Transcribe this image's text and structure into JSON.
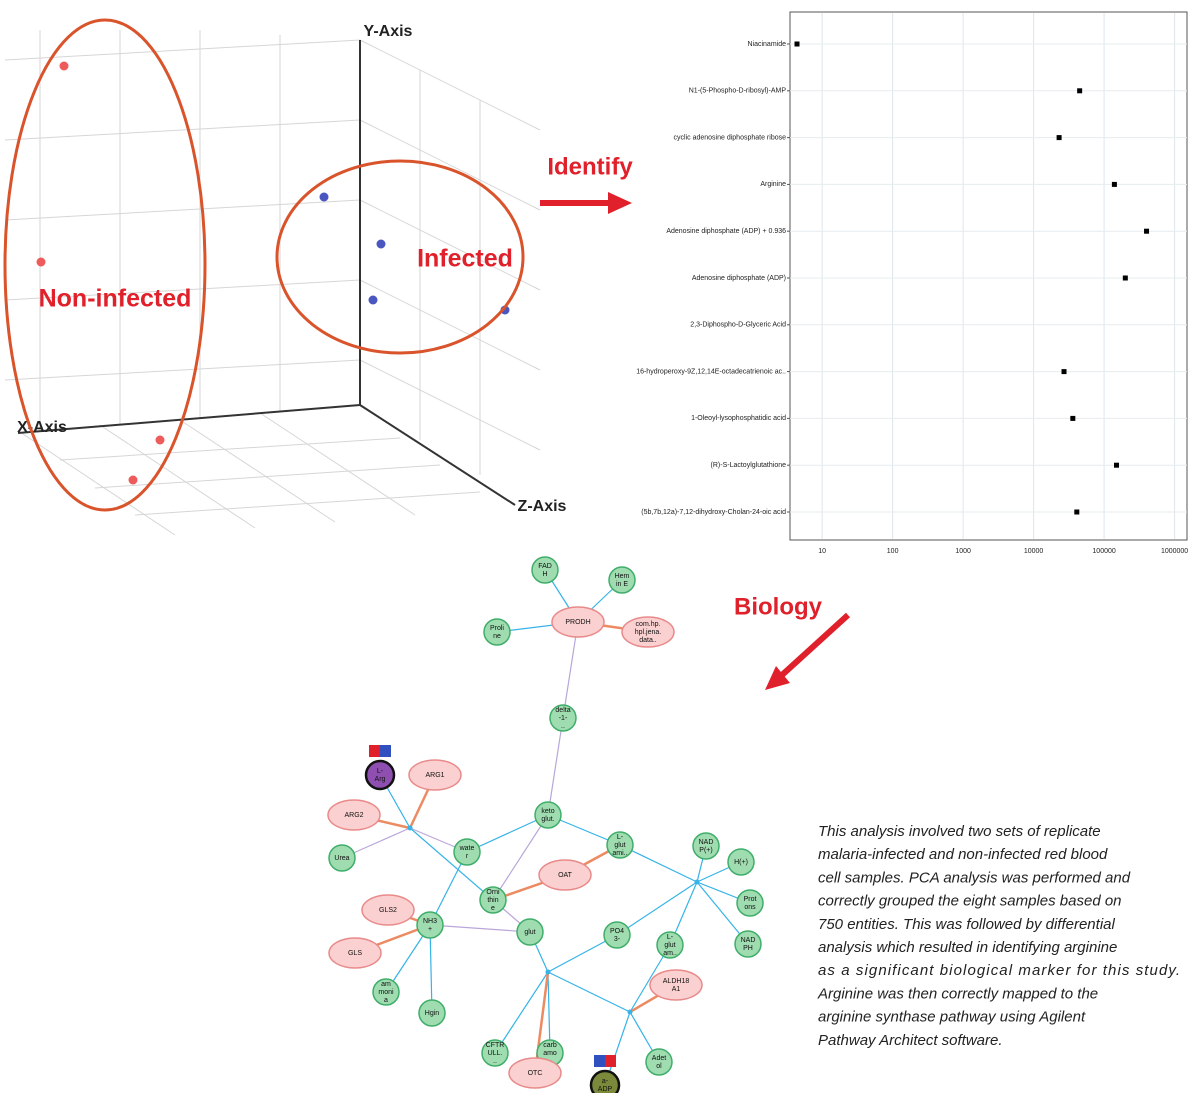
{
  "pca_plot": {
    "x_axis_label": "X-Axis",
    "y_axis_label": "Y-Axis",
    "z_axis_label": "Z-Axis",
    "groups": [
      "Non-infected",
      "Infected"
    ]
  },
  "arrows": {
    "identify": "Identify",
    "biology": "Biology"
  },
  "chart_data": {
    "type": "dot",
    "categories": [
      "Niacinamide",
      "N1-(5-Phospho-D-ribosyl)-AMP",
      "cyclic adenosine diphosphate ribose",
      "Arginine",
      "Adenosine diphosphate (ADP) + 0.936",
      "Adenosine diphosphate (ADP)",
      "2,3-Diphospho-D-Glyceric Acid",
      "16-hydroperoxy-9Z,12,14E-octadecatrienoic ac..",
      "1-Oleoyl-lysophosphatidic acid",
      "(R)-S-Lactoylglutathione",
      "(5b,7b,12a)-7,12-dihydroxy-Cholan-24-oic acid"
    ],
    "values": [
      4.4,
      45000,
      23000,
      140000,
      400000,
      200000,
      null,
      27000,
      36000,
      150000,
      41000
    ],
    "color": "#000000",
    "xlim": [
      3.5,
      1500000
    ],
    "xticks": [
      10,
      100,
      1000,
      10000,
      100000,
      1000000
    ],
    "log_x": true,
    "grid": true
  },
  "network": {
    "nodes": [
      {
        "label": "FAD\nH",
        "color": "green"
      },
      {
        "label": "Hem\nin E",
        "color": "green"
      },
      {
        "label": "Proli\nne",
        "color": "green"
      },
      {
        "label": "PRODH",
        "color": "red"
      },
      {
        "label": "com.hp.\nhpl.jena.\ndata..",
        "color": "red"
      },
      {
        "label": "delta\n-1-\n..",
        "color": "green"
      },
      {
        "label": "L-\nArg",
        "color": "purple"
      },
      {
        "label": "ARG1",
        "color": "red"
      },
      {
        "label": "ARG2",
        "color": "red"
      },
      {
        "label": "keto\nglut.",
        "color": "green"
      },
      {
        "label": "L-\nglut\nami..",
        "color": "green"
      },
      {
        "label": "NAD\nP(+)",
        "color": "green"
      },
      {
        "label": "Urea",
        "color": "green"
      },
      {
        "label": "wate\nr",
        "color": "green"
      },
      {
        "label": "H(+)",
        "color": "green"
      },
      {
        "label": "OAT",
        "color": "red"
      },
      {
        "label": "Orni\nthin\ne",
        "color": "green"
      },
      {
        "label": "Prot\nons",
        "color": "green"
      },
      {
        "label": "GLS2",
        "color": "red"
      },
      {
        "label": "NH3\n+",
        "color": "green"
      },
      {
        "label": "glut",
        "color": "green"
      },
      {
        "label": "PO4\n3-",
        "color": "green"
      },
      {
        "label": "L-\nglut\nam..",
        "color": "green"
      },
      {
        "label": "NAD\nPH",
        "color": "green"
      },
      {
        "label": "GLS",
        "color": "red"
      },
      {
        "label": "ALDH18\nA1",
        "color": "red"
      },
      {
        "label": "am\nmoni\na",
        "color": "green"
      },
      {
        "label": "Hgin",
        "color": "green"
      },
      {
        "label": "CFTR\nULL.\n..",
        "color": "green"
      },
      {
        "label": "carb\namo\n...",
        "color": "green"
      },
      {
        "label": "Adet\nol",
        "color": "green"
      },
      {
        "label": "OTC",
        "color": "red"
      },
      {
        "label": "a-\nADP",
        "color": "olive"
      }
    ]
  },
  "caption": {
    "lines": [
      "This analysis involved two sets of replicate",
      "malaria-infected and non-infected red blood",
      "cell samples. PCA analysis was performed and",
      "correctly grouped the eight samples based on",
      "750 entities. This was followed by differential",
      "analysis which resulted in identifying arginine",
      "as a significant biological marker for this study.",
      "Arginine was then correctly mapped to the",
      "arginine synthase pathway using Agilent",
      "Pathway Architect software."
    ]
  }
}
